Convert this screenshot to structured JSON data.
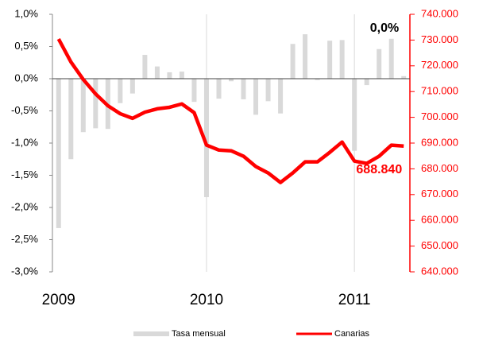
{
  "chart_data": {
    "type": "bar-line",
    "categories": [
      "2009",
      null,
      null,
      null,
      null,
      null,
      null,
      null,
      null,
      null,
      null,
      null,
      "2010",
      null,
      null,
      null,
      null,
      null,
      null,
      null,
      null,
      null,
      null,
      null,
      "2011",
      null,
      null,
      null,
      null
    ],
    "series": [
      {
        "name": "Tasa mensual",
        "type": "bar",
        "color": "#d9d9d9",
        "axis": "y",
        "values": [
          -2.32,
          -1.25,
          -0.83,
          -0.77,
          -0.78,
          -0.38,
          -0.23,
          0.37,
          0.19,
          0.1,
          0.11,
          -0.36,
          -1.84,
          -0.31,
          -0.04,
          -0.32,
          -0.56,
          -0.35,
          -0.54,
          0.54,
          0.69,
          -0.02,
          0.59,
          0.6,
          -1.12,
          -0.1,
          0.46,
          0.62,
          0.04
        ],
        "value_labels": [
          null,
          null,
          null,
          null,
          null,
          null,
          null,
          null,
          null,
          null,
          null,
          null,
          null,
          null,
          null,
          null,
          null,
          null,
          null,
          null,
          null,
          null,
          null,
          null,
          null,
          null,
          null,
          null,
          "0,0%"
        ]
      },
      {
        "name": "Canarias",
        "type": "line",
        "color": "#ff0000",
        "axis": "y2",
        "values": [
          730400,
          721500,
          714700,
          709100,
          704500,
          701400,
          699600,
          702000,
          703300,
          703900,
          705200,
          701800,
          689200,
          687300,
          687000,
          684900,
          680900,
          678400,
          674700,
          678400,
          682700,
          682700,
          686400,
          690400,
          683000,
          682100,
          684900,
          689200,
          688840
        ],
        "value_labels": [
          null,
          null,
          null,
          null,
          null,
          null,
          null,
          null,
          null,
          null,
          null,
          null,
          null,
          null,
          null,
          null,
          null,
          null,
          null,
          null,
          null,
          null,
          null,
          null,
          null,
          null,
          null,
          null,
          "688.840"
        ]
      }
    ],
    "ylim": [
      -3.0,
      1.0
    ],
    "yticks": [
      {
        "value": -3.0,
        "label": "-3,0%"
      },
      {
        "value": -2.5,
        "label": "-2,5%"
      },
      {
        "value": -2.0,
        "label": "-2,0%"
      },
      {
        "value": -1.5,
        "label": "-1,5%"
      },
      {
        "value": -1.0,
        "label": "-1,0%"
      },
      {
        "value": -0.5,
        "label": "-0,5%"
      },
      {
        "value": 0.0,
        "label": "0,0%"
      },
      {
        "value": 0.5,
        "label": "0,5%"
      },
      {
        "value": 1.0,
        "label": "1,0%"
      }
    ],
    "y2lim": [
      640000,
      740000
    ],
    "y2ticks": [
      {
        "value": 640000,
        "label": "640.000"
      },
      {
        "value": 650000,
        "label": "650.000"
      },
      {
        "value": 660000,
        "label": "660.000"
      },
      {
        "value": 670000,
        "label": "670.000"
      },
      {
        "value": 680000,
        "label": "680.000"
      },
      {
        "value": 690000,
        "label": "690.000"
      },
      {
        "value": 700000,
        "label": "700.000"
      },
      {
        "value": 710000,
        "label": "710.000"
      },
      {
        "value": 720000,
        "label": "720.000"
      },
      {
        "value": 730000,
        "label": "730.000"
      },
      {
        "value": 740000,
        "label": "740.000"
      }
    ],
    "y2color": "#ff0000",
    "legend": "bottom"
  }
}
